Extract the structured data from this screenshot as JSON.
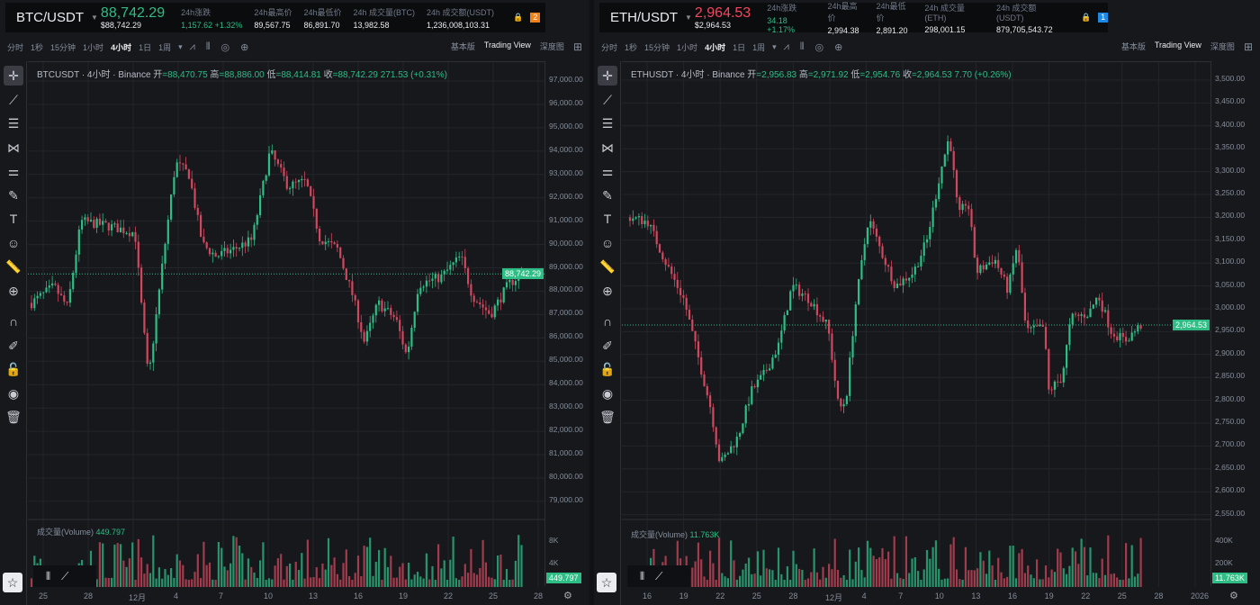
{
  "colors": {
    "up": "#2ebd85",
    "down": "#d0485e",
    "bg": "#17181c"
  },
  "close_icon": "close-icon",
  "panels": [
    {
      "id": "btc",
      "header": {
        "symbol": "BTC/USDT",
        "price": "88,742.29",
        "price_color": "#2ebd85",
        "usd_price": "$88,742.29",
        "stats": [
          {
            "label": "24h涨跌",
            "value": "1,157.62 +1.32%",
            "green": true
          },
          {
            "label": "24h最高价",
            "value": "89,567.75"
          },
          {
            "label": "24h最低价",
            "value": "86,891.70"
          },
          {
            "label": "24h 成交量(BTC)",
            "value": "13,982.58"
          },
          {
            "label": "24h 成交额(USDT)",
            "value": "1,236,008,103.31"
          }
        ],
        "badge": "2",
        "badge_color": "#f0811a"
      },
      "toolbar": {
        "intervals": [
          "分时",
          "1秒",
          "15分钟",
          "1小时",
          "4小时",
          "1日",
          "1周"
        ],
        "active": "4小时",
        "views": [
          "基本版",
          "Trading View",
          "深度图"
        ]
      },
      "legend": {
        "title": "BTCUSDT · 4小时 · Binance",
        "open_label": "开",
        "open": "=88,470.75",
        "high_label": "高",
        "high": "=88,886.00",
        "low_label": "低",
        "low": "=88,414.81",
        "close_label": "收",
        "close": "=88,742.29",
        "change": "271.53 (+0.31%)"
      },
      "price_axis": [
        "97,000.00",
        "96,000.00",
        "95,000.00",
        "94,000.00",
        "93,000.00",
        "92,000.00",
        "91,000.00",
        "90,000.00",
        "89,000.00",
        "88,000.00",
        "87,000.00",
        "86,000.00",
        "85,000.00",
        "84,000.00",
        "83,000.00",
        "82,000.00",
        "81,000.00",
        "80,000.00",
        "79,000.00"
      ],
      "last_price_tag": "88,742.29",
      "volume": {
        "label": "成交量(Volume)",
        "value": "449.797",
        "axis": [
          "8K",
          "4K"
        ],
        "tag": "449.797"
      },
      "dates": [
        "25",
        "28",
        "12月",
        "4",
        "7",
        "10",
        "13",
        "16",
        "19",
        "22",
        "25",
        "28"
      ]
    },
    {
      "id": "eth",
      "header": {
        "symbol": "ETH/USDT",
        "price": "2,964.53",
        "price_color": "#f6465d",
        "usd_price": "$2,964.53",
        "stats": [
          {
            "label": "24h涨跌",
            "value": "34.18 +1.17%",
            "green": true
          },
          {
            "label": "24h最高价",
            "value": "2,994.38"
          },
          {
            "label": "24h最低价",
            "value": "2,891.20"
          },
          {
            "label": "24h 成交量(ETH)",
            "value": "298,001.15"
          },
          {
            "label": "24h 成交额(USDT)",
            "value": "879,705,543.72"
          }
        ],
        "badge": "1",
        "badge_color": "#1e88e5"
      },
      "toolbar": {
        "intervals": [
          "分时",
          "1秒",
          "15分钟",
          "1小时",
          "4小时",
          "1日",
          "1周"
        ],
        "active": "4小时",
        "views": [
          "基本版",
          "Trading View",
          "深度图"
        ]
      },
      "legend": {
        "title": "ETHUSDT · 4小时 · Binance",
        "open_label": "开",
        "open": "=2,956.83",
        "high_label": "高",
        "high": "=2,971.92",
        "low_label": "低",
        "low": "=2,954.76",
        "close_label": "收",
        "close": "=2,964.53",
        "change": "7.70 (+0.26%)"
      },
      "price_axis": [
        "3,500.00",
        "3,450.00",
        "3,400.00",
        "3,350.00",
        "3,300.00",
        "3,250.00",
        "3,200.00",
        "3,150.00",
        "3,100.00",
        "3,050.00",
        "3,000.00",
        "2,950.00",
        "2,900.00",
        "2,850.00",
        "2,800.00",
        "2,750.00",
        "2,700.00",
        "2,650.00",
        "2,600.00",
        "2,550.00"
      ],
      "last_price_tag": "2,964.53",
      "volume": {
        "label": "成交量(Volume)",
        "value": "11.763K",
        "axis": [
          "400K",
          "200K"
        ],
        "tag": "11.763K"
      },
      "dates": [
        "16",
        "19",
        "22",
        "25",
        "28",
        "12月",
        "4",
        "7",
        "10",
        "13",
        "16",
        "19",
        "22",
        "25",
        "28",
        "2026"
      ]
    }
  ]
}
